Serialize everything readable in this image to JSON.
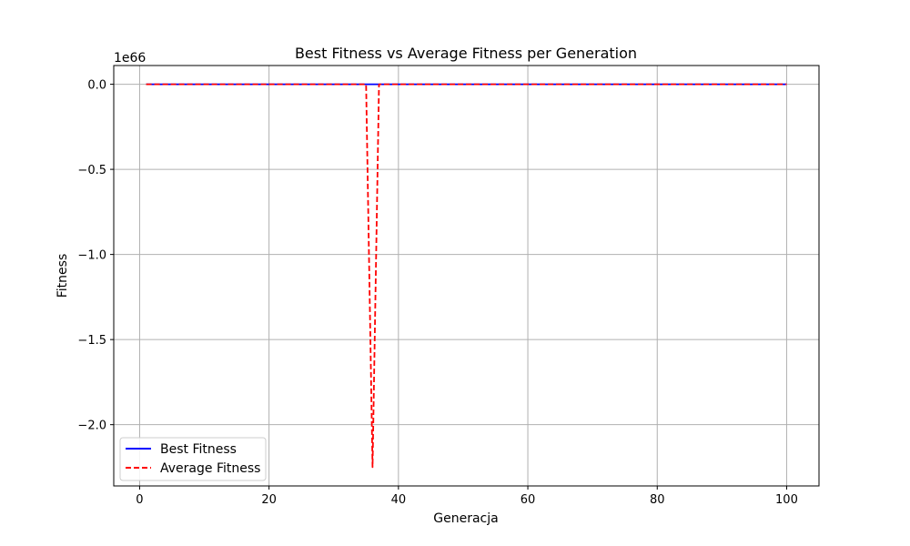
{
  "chart_data": {
    "type": "line",
    "title": "Best Fitness vs Average Fitness per Generation",
    "xlabel": "Generacja",
    "ylabel": "Fitness",
    "y_offset_label": "1e66",
    "y_scale_exponent": 66,
    "xlim": [
      -4,
      105
    ],
    "ylim": [
      -2.36,
      0.11
    ],
    "x_ticks": [
      0,
      20,
      40,
      60,
      80,
      100
    ],
    "x_tick_labels": [
      "0",
      "20",
      "40",
      "60",
      "80",
      "100"
    ],
    "y_ticks": [
      0.0,
      -0.5,
      -1.0,
      -1.5,
      -2.0
    ],
    "y_tick_labels": [
      "0.0",
      "−0.5",
      "−1.0",
      "−1.5",
      "−2.0"
    ],
    "grid": true,
    "legend_position": "lower-left",
    "series": [
      {
        "name": "Best Fitness",
        "color": "#0000ff",
        "style": "solid",
        "x": [
          1,
          100
        ],
        "y": [
          0,
          0
        ]
      },
      {
        "name": "Average Fitness",
        "color": "#ff0000",
        "style": "dashed",
        "x": [
          1,
          35,
          36,
          37,
          100
        ],
        "y": [
          0,
          0,
          -2.25,
          0,
          0
        ]
      }
    ]
  }
}
